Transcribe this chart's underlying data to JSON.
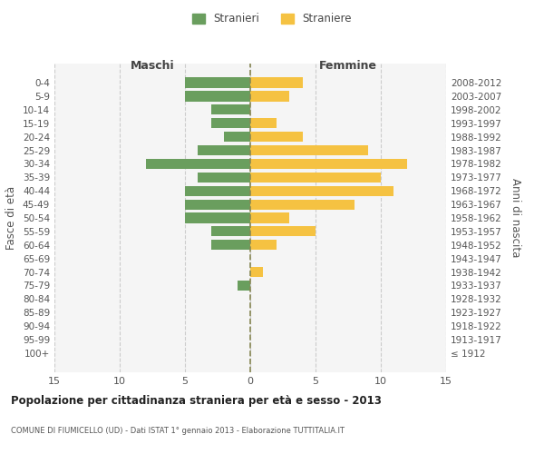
{
  "age_groups": [
    "0-4",
    "5-9",
    "10-14",
    "15-19",
    "20-24",
    "25-29",
    "30-34",
    "35-39",
    "40-44",
    "45-49",
    "50-54",
    "55-59",
    "60-64",
    "65-69",
    "70-74",
    "75-79",
    "80-84",
    "85-89",
    "90-94",
    "95-99",
    "100+"
  ],
  "birth_years": [
    "2008-2012",
    "2003-2007",
    "1998-2002",
    "1993-1997",
    "1988-1992",
    "1983-1987",
    "1978-1982",
    "1973-1977",
    "1968-1972",
    "1963-1967",
    "1958-1962",
    "1953-1957",
    "1948-1952",
    "1943-1947",
    "1938-1942",
    "1933-1937",
    "1928-1932",
    "1923-1927",
    "1918-1922",
    "1913-1917",
    "≤ 1912"
  ],
  "males": [
    5,
    5,
    3,
    3,
    2,
    4,
    8,
    4,
    5,
    5,
    5,
    3,
    3,
    0,
    0,
    1,
    0,
    0,
    0,
    0,
    0
  ],
  "females": [
    4,
    3,
    0,
    2,
    4,
    9,
    12,
    10,
    11,
    8,
    3,
    5,
    2,
    0,
    1,
    0,
    0,
    0,
    0,
    0,
    0
  ],
  "male_color": "#6a9e5e",
  "female_color": "#f5c242",
  "grid_color": "#cccccc",
  "bar_height": 0.75,
  "xlim": 15,
  "title": "Popolazione per cittadinanza straniera per età e sesso - 2013",
  "subtitle": "COMUNE DI FIUMICELLO (UD) - Dati ISTAT 1° gennaio 2013 - Elaborazione TUTTITALIA.IT",
  "left_label": "Maschi",
  "right_label": "Femmine",
  "y_left_label": "Fasce di età",
  "y_right_label": "Anni di nascita",
  "legend_male": "Stranieri",
  "legend_female": "Straniere",
  "bg_color": "#ffffff",
  "plot_bg_color": "#f5f5f5",
  "dashed_line_color": "#888855"
}
